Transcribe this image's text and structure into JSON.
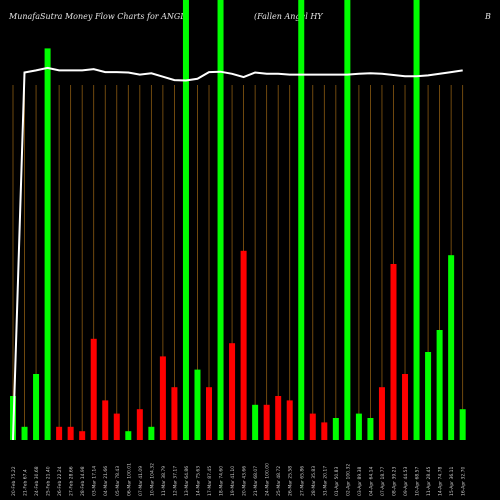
{
  "header": {
    "title": "MunafaSutra  Money Flow  Charts for ANGL",
    "subtitle": "(Fallen  Angel HY",
    "tag": "B"
  },
  "chart_data": {
    "type": "bar",
    "title": "MunafaSutra  Money Flow  Charts for ANGL",
    "ylim": [
      0,
      100
    ],
    "grid": true,
    "categories": [
      "20-Feb 75.22",
      "21-Feb 67.4",
      "24-Feb 30.68",
      "25-Feb 21.40",
      "26-Feb 22.24",
      "27-Feb 28.66",
      "28-Feb 14.98",
      "03-Mar 17.14",
      "04-Mar 21.66",
      "05-Mar 78.43",
      "06-Mar 100.01",
      "07-Mar 41.09",
      "10-Mar 104.32",
      "11-Mar 38.79",
      "12-Mar 37.17",
      "13-Mar 64.86",
      "14-Mar 75.63",
      "17-Mar 87.45",
      "18-Mar 74.60",
      "19-Mar 41.10",
      "20-Mar 43.66",
      "21-Mar 68.07",
      "24-Mar 100.00",
      "25-Mar 48.72",
      "26-Mar 25.58",
      "27-Mar 65.86",
      "28-Mar 35.83",
      "31-Mar 20.17",
      "01-Apr 50.83",
      "02-Apr 100.32",
      "03-Apr 89.38",
      "04-Apr 64.14",
      "07-Apr 18.77",
      "08-Apr 39.23",
      "09-Apr 44.53",
      "10-Apr 68.57",
      "11-Apr 28.45",
      "14-Apr 74.78",
      "15-Apr 36.11",
      "16-Apr 32.70"
    ],
    "series": [
      {
        "values": [
          10,
          3,
          15,
          89,
          3,
          3,
          2,
          23,
          9,
          6,
          2,
          7,
          3,
          19,
          12,
          100,
          16,
          12,
          100,
          22,
          43,
          8,
          8,
          10,
          9,
          100,
          6,
          4,
          5,
          100,
          6,
          5,
          12,
          40,
          15,
          100,
          20,
          25,
          42,
          7
        ],
        "colors": [
          "#00ff00",
          "#00ff00",
          "#00ff00",
          "#00ff00",
          "#ff0000",
          "#ff0000",
          "#ff0000",
          "#ff0000",
          "#ff0000",
          "#ff0000",
          "#00ff00",
          "#ff0000",
          "#00ff00",
          "#ff0000",
          "#ff0000",
          "#00ff00",
          "#00ff00",
          "#ff0000",
          "#00ff00",
          "#ff0000",
          "#ff0000",
          "#00ff00",
          "#ff0000",
          "#ff0000",
          "#ff0000",
          "#00ff00",
          "#ff0000",
          "#ff0000",
          "#00ff00",
          "#00ff00",
          "#00ff00",
          "#00ff00",
          "#ff0000",
          "#ff0000",
          "#ff0000",
          "#00ff00",
          "#00ff00",
          "#00ff00",
          "#00ff00",
          "#00ff00"
        ]
      },
      {
        "values": [
          0,
          87.5,
          88,
          88.6,
          88,
          88,
          88,
          88.3,
          87.6,
          87.6,
          87.5,
          87,
          87.3,
          86.5,
          85.7,
          85.6,
          86,
          87.6,
          87.7,
          87.2,
          86.4,
          87.5,
          87.2,
          87.2,
          87,
          87,
          87,
          87,
          87,
          87,
          87.2,
          87.3,
          87.2,
          86.9,
          86.6,
          86.6,
          86.8,
          87.2,
          87.6,
          88
        ]
      }
    ]
  }
}
